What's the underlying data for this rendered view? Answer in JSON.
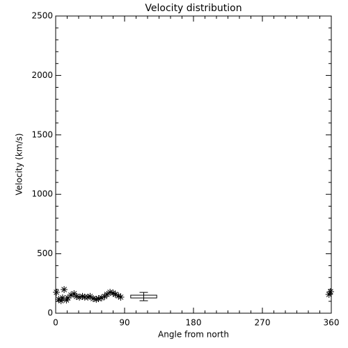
{
  "chart_data": {
    "type": "scatter",
    "title": "Velocity distribution",
    "x_label": "Angle from north",
    "y_label": "Velocity (km/s)",
    "x": [
      1,
      4,
      7,
      9,
      11,
      14,
      16,
      20,
      24,
      27,
      31,
      35,
      38,
      42,
      45,
      49,
      53,
      56,
      60,
      64,
      67,
      71,
      75,
      78,
      82,
      85,
      357,
      359
    ],
    "values": [
      176,
      117,
      105,
      129,
      199,
      111,
      129,
      152,
      164,
      141,
      135,
      141,
      135,
      135,
      141,
      123,
      117,
      123,
      129,
      141,
      158,
      176,
      170,
      158,
      146,
      135,
      158,
      181
    ],
    "color": "#000000",
    "errorbar": {
      "x": 115,
      "xerr": 17,
      "y": 140,
      "yerr": 35
    },
    "xlim": [
      0,
      360
    ],
    "xticks": [
      0,
      90,
      180,
      270,
      360
    ],
    "ylim": [
      0,
      2500
    ],
    "yticks": [
      0,
      500,
      1000,
      1500,
      2000,
      2500
    ]
  }
}
